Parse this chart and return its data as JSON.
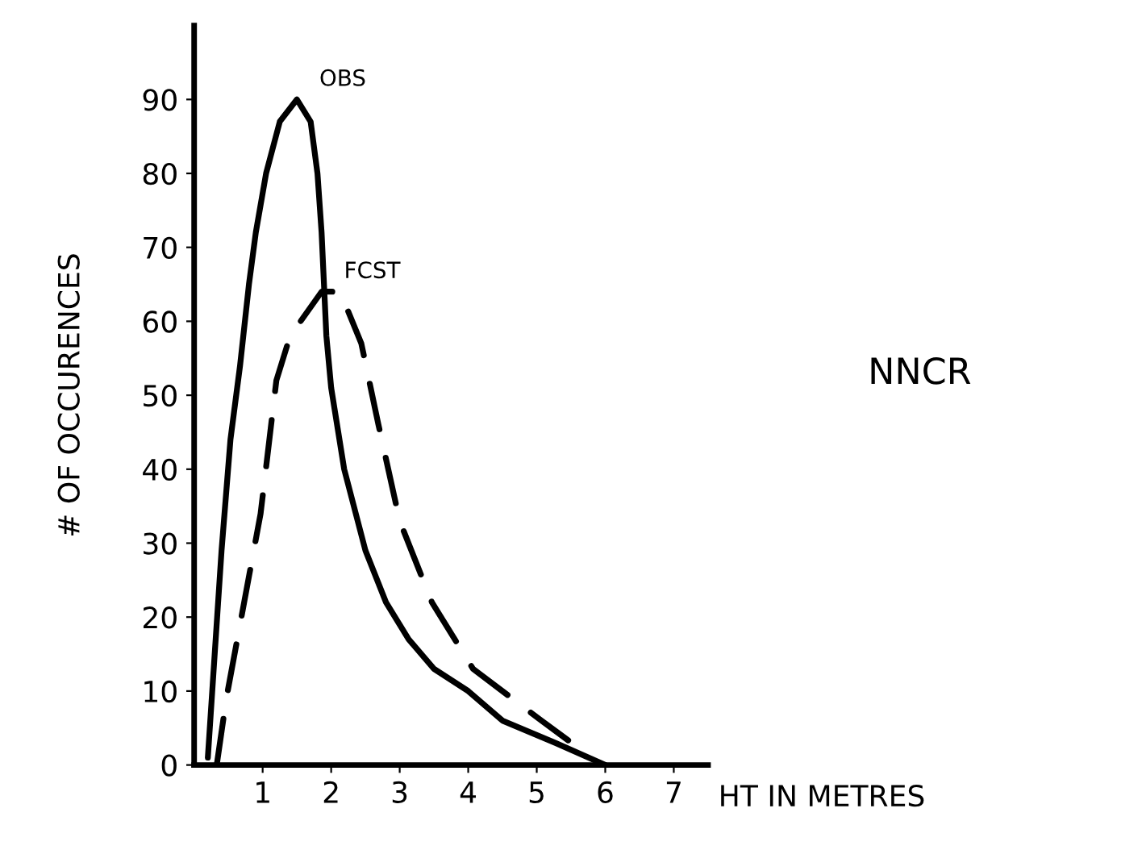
{
  "chart_data": {
    "type": "line",
    "xlabel": "HT IN METRES",
    "ylabel": "# OF OCCURENCES",
    "annotations": [
      "NNCR"
    ],
    "series": [
      {
        "name": "OBS",
        "color": "#000000",
        "line_style": "solid",
        "x": [
          0.2,
          0.3,
          0.4,
          0.53,
          0.67,
          0.8,
          0.9,
          1.05,
          1.25,
          1.5,
          1.7,
          1.8,
          1.86,
          1.93,
          2.0,
          2.19,
          2.5,
          2.8,
          3.13,
          3.5,
          4.0,
          4.5,
          5.27,
          6.0
        ],
        "values": [
          1,
          15,
          29,
          44,
          54,
          65,
          72,
          80,
          87,
          90,
          87,
          80,
          72,
          58,
          51,
          40,
          29,
          22,
          17,
          13,
          10,
          6,
          3,
          0
        ]
      },
      {
        "name": "FCST",
        "color": "#000000",
        "line_style": "dashed",
        "x": [
          0.33,
          0.47,
          0.73,
          0.97,
          1.2,
          1.4,
          1.86,
          2.13,
          2.44,
          2.69,
          3.0,
          3.47,
          4.07,
          5.07,
          5.8
        ],
        "values": [
          0,
          9,
          22,
          34,
          52,
          58,
          64,
          64,
          57,
          46,
          33,
          22,
          13,
          6,
          1
        ]
      }
    ],
    "xlim": [
      0,
      7.5
    ],
    "xticks": [
      1,
      2,
      3,
      4,
      5,
      6,
      7
    ],
    "ylim": [
      0,
      100
    ],
    "yticks": [
      0,
      10,
      20,
      30,
      40,
      50,
      60,
      70,
      80,
      90
    ],
    "grid": false,
    "legend": false,
    "marker": "none"
  }
}
